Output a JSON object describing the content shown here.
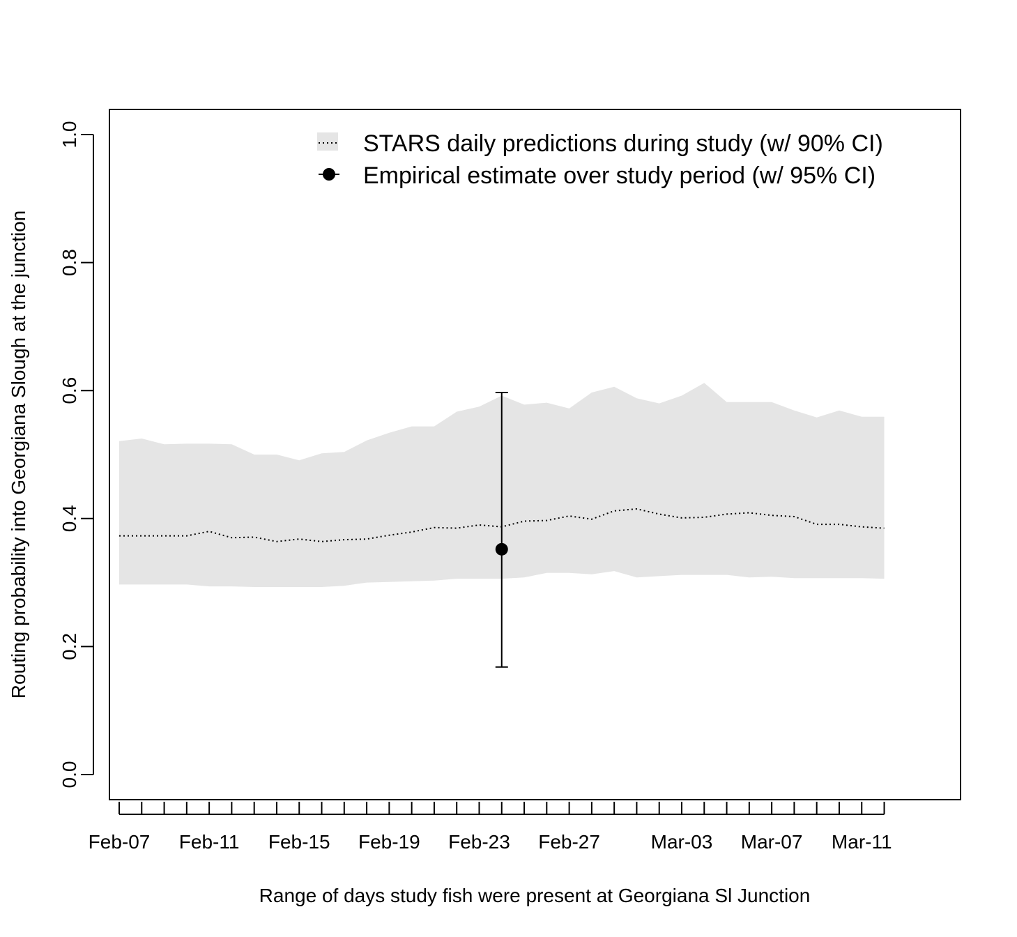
{
  "chart_data": {
    "type": "line",
    "title": "",
    "xlabel": "Range of days study fish were present at Georgiana Sl Junction",
    "ylabel": "Routing probability into Georgiana Slough at the junction",
    "ylim": [
      0.0,
      1.0
    ],
    "y_ticks": [
      "0.0",
      "0.2",
      "0.4",
      "0.6",
      "0.8",
      "1.0"
    ],
    "x_tick_labels": [
      "Feb-07",
      "Feb-11",
      "Feb-15",
      "Feb-19",
      "Feb-23",
      "Feb-27",
      "Mar-03",
      "Mar-07",
      "Mar-11"
    ],
    "grid": false,
    "legend_position": "top-right",
    "x_dates": [
      "Feb-07",
      "Feb-08",
      "Feb-09",
      "Feb-10",
      "Feb-11",
      "Feb-12",
      "Feb-13",
      "Feb-14",
      "Feb-15",
      "Feb-16",
      "Feb-17",
      "Feb-18",
      "Feb-19",
      "Feb-20",
      "Feb-21",
      "Feb-22",
      "Feb-23",
      "Feb-24",
      "Feb-25",
      "Feb-26",
      "Feb-27",
      "Feb-28",
      "Feb-29",
      "Mar-01",
      "Mar-02",
      "Mar-03",
      "Mar-04",
      "Mar-05",
      "Mar-06",
      "Mar-07",
      "Mar-08",
      "Mar-09",
      "Mar-10",
      "Mar-11",
      "Mar-12"
    ],
    "series": [
      {
        "name": "STARS daily predictions during study (w/ 90% CI)",
        "style": "dotted line with shaded band",
        "band_color": "#e5e5e5",
        "line_color": "#000000",
        "values": [
          0.373,
          0.373,
          0.373,
          0.373,
          0.38,
          0.37,
          0.371,
          0.364,
          0.368,
          0.364,
          0.367,
          0.368,
          0.374,
          0.379,
          0.386,
          0.385,
          0.39,
          0.387,
          0.396,
          0.397,
          0.404,
          0.399,
          0.412,
          0.415,
          0.407,
          0.401,
          0.402,
          0.407,
          0.409,
          0.405,
          0.403,
          0.391,
          0.391,
          0.387,
          0.385
        ],
        "upper": [
          0.521,
          0.525,
          0.516,
          0.517,
          0.517,
          0.516,
          0.5,
          0.5,
          0.491,
          0.502,
          0.504,
          0.522,
          0.534,
          0.544,
          0.544,
          0.567,
          0.575,
          0.592,
          0.578,
          0.581,
          0.572,
          0.597,
          0.606,
          0.588,
          0.58,
          0.592,
          0.612,
          0.582,
          0.582,
          0.582,
          0.569,
          0.558,
          0.569,
          0.559,
          0.559
        ],
        "lower": [
          0.297,
          0.297,
          0.297,
          0.297,
          0.294,
          0.294,
          0.293,
          0.293,
          0.293,
          0.293,
          0.295,
          0.3,
          0.301,
          0.302,
          0.303,
          0.306,
          0.306,
          0.306,
          0.308,
          0.315,
          0.315,
          0.313,
          0.318,
          0.308,
          0.31,
          0.312,
          0.312,
          0.312,
          0.308,
          0.309,
          0.307,
          0.307,
          0.307,
          0.307,
          0.306
        ]
      },
      {
        "name": "Empirical estimate over study period (w/ 95% CI)",
        "style": "point with error bar",
        "color": "#000000",
        "x": "Feb-24",
        "value": 0.352,
        "ci_low": 0.168,
        "ci_high": 0.597
      }
    ]
  }
}
